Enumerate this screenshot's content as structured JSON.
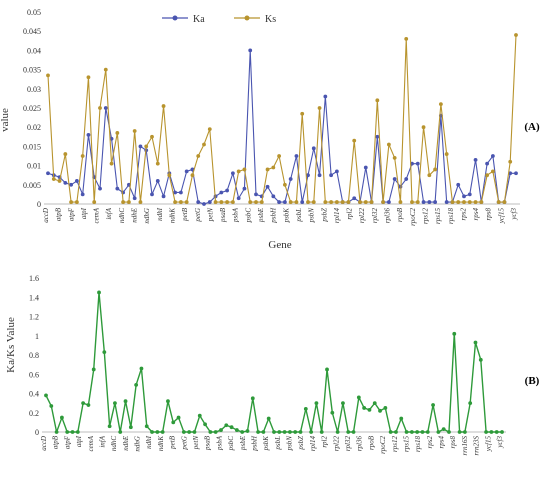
{
  "chart_data": [
    {
      "type": "line",
      "panel_label": "(A)",
      "xlabel": "Gene",
      "ylabel": "value",
      "ylim": [
        0,
        0.05
      ],
      "yticks": [
        "0",
        "0.005",
        "0.01",
        "0.015",
        "0.02",
        "0.025",
        "0.03",
        "0.035",
        "0.04",
        "0.045",
        "0.05"
      ],
      "xtick_labels": [
        "accD",
        "atpB",
        "atpF",
        "atpI",
        "cemA",
        "infA",
        "ndhC",
        "ndhE",
        "ndhG",
        "ndhI",
        "ndhK",
        "petB",
        "petG",
        "petN",
        "psaB",
        "psbA",
        "psbC",
        "psbE",
        "psbH",
        "psbK",
        "psbL",
        "psbN",
        "psbZ",
        "rpl14",
        "rpl2",
        "rpl22",
        "rpl32",
        "rpl36",
        "rpoB",
        "rpoC2",
        "rps12",
        "rps15",
        "rps18",
        "rps2",
        "rps4",
        "rps8",
        "ycf15",
        "ycf3"
      ],
      "legend": "top-center",
      "series": [
        {
          "name": "Ka",
          "color": "#4a55b0",
          "values": [
            0.008,
            0.0075,
            0.007,
            0.0055,
            0.005,
            0.006,
            0.0025,
            0.018,
            0.007,
            0.004,
            0.025,
            0.017,
            0.004,
            0.003,
            0.005,
            0.0015,
            0.015,
            0.014,
            0.0025,
            0.006,
            0.002,
            0.008,
            0.003,
            0.003,
            0.0085,
            0.009,
            0.0005,
            0,
            0.0005,
            0.002,
            0.003,
            0.0035,
            0.008,
            0.0015,
            0.004,
            0.04,
            0.0025,
            0.002,
            0.0045,
            0.002,
            0.0005,
            0.0005,
            0.0065,
            0.0125,
            0.0005,
            0.0075,
            0.0145,
            0.0075,
            0.028,
            0.0075,
            0.0085,
            0.0005,
            0.0005,
            0.0015,
            0.0005,
            0.0095,
            0.0005,
            0.0175,
            0.0005,
            0.0005,
            0.0065,
            0.0045,
            0.0065,
            0.0105,
            0.0105,
            0.0005,
            0.0005,
            0.0005,
            0.023,
            0.0005,
            0.0005,
            0.005,
            0.002,
            0.0025,
            0.0115,
            0.0005,
            0.0105,
            0.0125,
            0.0005,
            0.0005,
            0.008,
            0.008
          ]
        },
        {
          "name": "Ks",
          "color": "#b8942e",
          "values": [
            0.0335,
            0.0065,
            0.006,
            0.013,
            0.0005,
            0.0005,
            0.0125,
            0.033,
            0.0005,
            0.025,
            0.035,
            0.0105,
            0.0185,
            0.0005,
            0.0005,
            0.019,
            0.0005,
            0.015,
            0.0175,
            0.0105,
            0.0255,
            0.0075,
            0.0005,
            0.0005,
            0.0005,
            0.0075,
            0.0125,
            0.0155,
            0.0195,
            0.0005,
            0.0005,
            0.0005,
            0.0005,
            0.0085,
            0.009,
            0.0005,
            0.0005,
            0.0005,
            0.009,
            0.0095,
            0.0125,
            0.005,
            0.0005,
            0.0005,
            0.0235,
            0.0005,
            0.0005,
            0.025,
            0.0005,
            0.0005,
            0.0005,
            0.0005,
            0.0005,
            0.0165,
            0.0005,
            0.0005,
            0.0005,
            0.027,
            0.0005,
            0.0155,
            0.012,
            0.0005,
            0.043,
            0.0005,
            0.0005,
            0.02,
            0.0075,
            0.009,
            0.026,
            0.013,
            0.0005,
            0.0005,
            0.0005,
            0.0005,
            0.0005,
            0.0005,
            0.0075,
            0.0085,
            0.0005,
            0.0005,
            0.011,
            0.044
          ]
        }
      ]
    },
    {
      "type": "line",
      "panel_label": "(B)",
      "xlabel": "Gene",
      "ylabel": "Ka/Ks Value",
      "ylim": [
        0,
        1.6
      ],
      "yticks": [
        "0",
        "0.2",
        "0.4",
        "0.6",
        "0.8",
        "1",
        "1.2",
        "1.4",
        "1.6"
      ],
      "xtick_labels": [
        "accD",
        "atpB",
        "atpF",
        "atpI",
        "cemA",
        "infA",
        "ndhC",
        "ndhE",
        "ndhG",
        "ndhI",
        "ndhK",
        "petB",
        "petG",
        "petN",
        "psaB",
        "psbA",
        "psbC",
        "psbE",
        "psbH",
        "psbK",
        "psbL",
        "psbN",
        "psbZ",
        "rpl14",
        "rpl2",
        "rpl22",
        "rpl32",
        "rpl36",
        "rpoB",
        "rpoC2",
        "rps12",
        "rps15",
        "rps18",
        "rps2",
        "rps4",
        "rps8",
        "rrn16S",
        "rrn23S",
        "ycf15",
        "ycf3"
      ],
      "series": [
        {
          "name": "Ka/Ks",
          "color": "#2e9a3a",
          "values": [
            0.38,
            0.27,
            0,
            0.15,
            0,
            0,
            0,
            0.3,
            0.28,
            0.65,
            1.45,
            0.83,
            0.06,
            0.3,
            0,
            0.32,
            0.05,
            0.49,
            0.66,
            0.06,
            0,
            0,
            0,
            0.32,
            0.1,
            0.15,
            0,
            0,
            0,
            0.17,
            0.08,
            0,
            0,
            0.02,
            0.07,
            0.05,
            0.02,
            0,
            0.01,
            0.35,
            0,
            0,
            0.14,
            0,
            0,
            0,
            0,
            0,
            0,
            0.24,
            0,
            0.3,
            0,
            0.65,
            0.2,
            0,
            0.3,
            0,
            0,
            0.36,
            0.25,
            0.23,
            0.3,
            0.22,
            0.25,
            0,
            0,
            0.14,
            0,
            0,
            0,
            0,
            0,
            0.28,
            0,
            0.03,
            0,
            1.02,
            0,
            0,
            0.3,
            0.93,
            0.75,
            0,
            0,
            0,
            0
          ]
        }
      ]
    }
  ]
}
